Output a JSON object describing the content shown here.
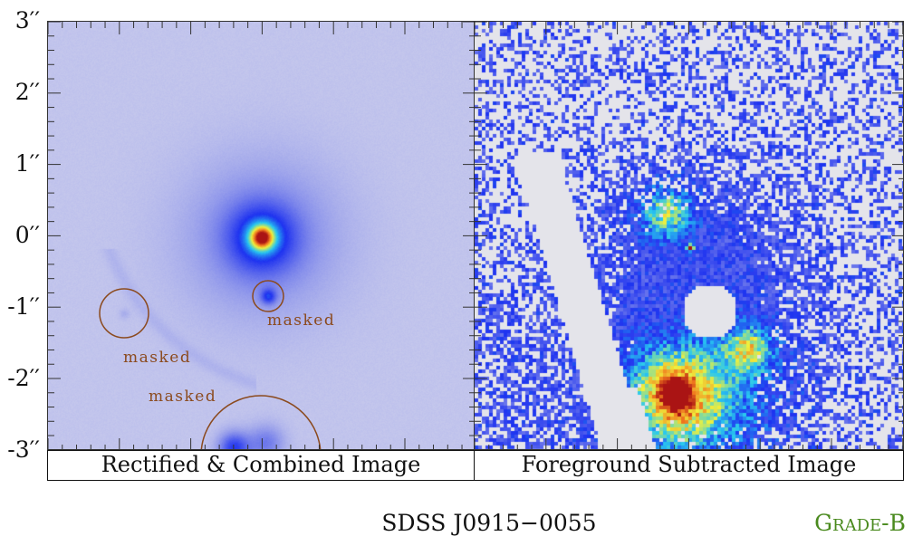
{
  "figure": {
    "title": "SDSS J0915−0055",
    "grade": "Grade-B",
    "y_axis_ticks": [
      "3′′",
      "2′′",
      "1′′",
      "0′′",
      "-1′′",
      "-2′′",
      "-3′′"
    ],
    "left_panel": {
      "caption": "Rectified & Combined Image",
      "mask_labels": [
        "masked",
        "masked",
        "masked"
      ]
    },
    "right_panel": {
      "caption": "Foreground Subtracted Image"
    },
    "colors": {
      "mask_circle": "#8b4a1e",
      "grade": "#4a8a1e",
      "background": "#dadaec"
    }
  }
}
